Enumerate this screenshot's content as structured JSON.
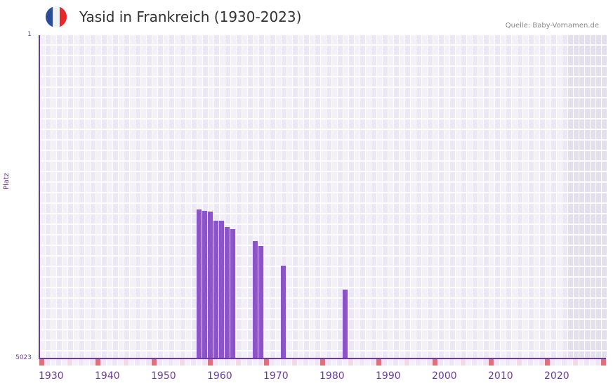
{
  "header": {
    "title": "Yasid in Frankreich (1930-2023)",
    "source": "Quelle: Baby-Vornamen.de",
    "flag_colors": [
      "#2b4b9b",
      "#f2f2f2",
      "#e8262c"
    ]
  },
  "colors": {
    "bar": "#8b55c8",
    "axis": "#6a3d9a",
    "grid_a": "#f3effb",
    "grid_b": "#ece6f7",
    "future": "#e4dff0",
    "decade_marker": "#e07078",
    "mid_marker": "#f5d9e0"
  },
  "chart_data": {
    "type": "bar",
    "title": "Yasid in Frankreich (1930-2023)",
    "xlabel": "",
    "ylabel": "Platz",
    "ylim": [
      5023,
      1
    ],
    "y_ticks": [
      "1",
      "5023"
    ],
    "x_ticks": [
      "1930",
      "1940",
      "1950",
      "1960",
      "1970",
      "1980",
      "1990",
      "2000",
      "2010",
      "2020"
    ],
    "x": [
      1958,
      1959,
      1960,
      1961,
      1962,
      1963,
      1964,
      1968,
      1969,
      1973,
      1984
    ],
    "values": [
      2709,
      2730,
      2741,
      2883,
      2883,
      2981,
      3014,
      3200,
      3276,
      3582,
      3953
    ],
    "x_range": [
      1930,
      2030
    ],
    "future_from": 2024
  }
}
